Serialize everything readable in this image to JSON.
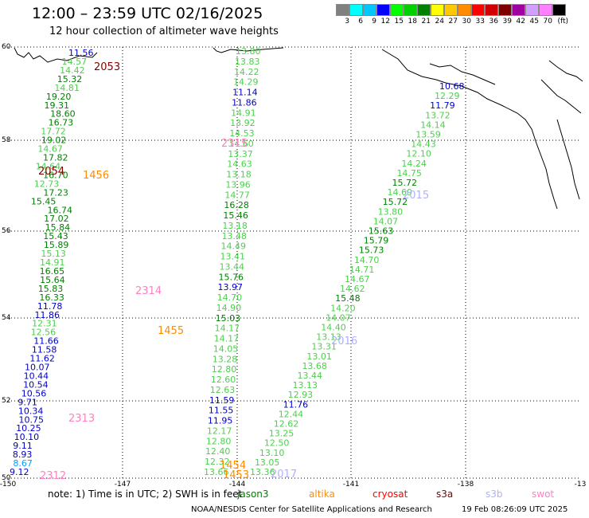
{
  "header": {
    "title": "12:00 – 23:59 UTC 02/16/2025",
    "subtitle": "12 hour collection of altimeter wave heights"
  },
  "legend": {
    "colors": [
      "#808080",
      "#00ffff",
      "#00c8ff",
      "#0000ff",
      "#00ff00",
      "#00d000",
      "#008000",
      "#ffff00",
      "#ffc800",
      "#ff8c00",
      "#ff0000",
      "#d00000",
      "#800000",
      "#a000a0",
      "#d0a0ff",
      "#ff80ff",
      "#000000"
    ],
    "labels": [
      "3",
      "6",
      "9",
      "12",
      "15",
      "18",
      "21",
      "24",
      "27",
      "30",
      "33",
      "36",
      "39",
      "42",
      "45",
      "70",
      "(ft)"
    ]
  },
  "axes": {
    "lat_labels": [
      "60",
      "58",
      "56",
      "54",
      "52",
      "50"
    ],
    "lon_labels": [
      "-150",
      "-147",
      "-144",
      "-141",
      "-138",
      "-13"
    ]
  },
  "tracks": [
    {
      "id": "t1",
      "labels": [
        {
          "v": "11.56",
          "c": "#0000cc"
        },
        {
          "v": "14.57",
          "c": "#4cd04c"
        },
        {
          "v": "14.42",
          "c": "#4cd04c"
        },
        {
          "v": "15.32",
          "c": "#008000"
        },
        {
          "v": "14.81",
          "c": "#4cd04c"
        },
        {
          "v": "19.20",
          "c": "#008000"
        },
        {
          "v": "19.31",
          "c": "#008000"
        },
        {
          "v": "18.60",
          "c": "#008000"
        },
        {
          "v": "16.73",
          "c": "#008000"
        },
        {
          "v": "17.72",
          "c": "#4cd04c"
        },
        {
          "v": "19.02",
          "c": "#008000"
        },
        {
          "v": "14.67",
          "c": "#4cd04c"
        },
        {
          "v": "17.82",
          "c": "#008000"
        },
        {
          "v": "14.64",
          "c": "#4cd04c"
        },
        {
          "v": "16.70",
          "c": "#008000"
        },
        {
          "v": "12.73",
          "c": "#4cd04c"
        },
        {
          "v": "17.23",
          "c": "#008000"
        },
        {
          "v": "15.45",
          "c": "#008000"
        },
        {
          "v": "16.74",
          "c": "#008000"
        },
        {
          "v": "17.02",
          "c": "#008000"
        },
        {
          "v": "15.84",
          "c": "#008000"
        },
        {
          "v": "15.43",
          "c": "#008000"
        },
        {
          "v": "15.89",
          "c": "#008000"
        },
        {
          "v": "15.13",
          "c": "#4cd04c"
        },
        {
          "v": "14.91",
          "c": "#4cd04c"
        },
        {
          "v": "16.65",
          "c": "#008000"
        },
        {
          "v": "15.64",
          "c": "#008000"
        },
        {
          "v": "15.83",
          "c": "#008000"
        },
        {
          "v": "16.33",
          "c": "#008000"
        },
        {
          "v": "11.78",
          "c": "#0000cc"
        },
        {
          "v": "11.86",
          "c": "#0000cc"
        },
        {
          "v": "12.31",
          "c": "#4cd04c"
        },
        {
          "v": "12.56",
          "c": "#4cd04c"
        },
        {
          "v": "11.66",
          "c": "#0000cc"
        },
        {
          "v": "11.58",
          "c": "#0000cc"
        },
        {
          "v": "11.62",
          "c": "#0000cc"
        },
        {
          "v": "10.07",
          "c": "#0000cc"
        },
        {
          "v": "10.44",
          "c": "#0000cc"
        },
        {
          "v": "10.54",
          "c": "#0000cc"
        },
        {
          "v": "10.56",
          "c": "#0000cc"
        },
        {
          "v": "9.71",
          "c": "#0000cc"
        },
        {
          "v": "10.34",
          "c": "#0000cc"
        },
        {
          "v": "10.75",
          "c": "#0000cc"
        },
        {
          "v": "10.25",
          "c": "#0000cc"
        },
        {
          "v": "10.10",
          "c": "#0000cc"
        },
        {
          "v": "9.11",
          "c": "#0000cc"
        },
        {
          "v": "8.93",
          "c": "#0000cc"
        },
        {
          "v": "8.67",
          "c": "#00a0ff"
        },
        {
          "v": "9.12",
          "c": "#0000cc"
        }
      ]
    },
    {
      "id": "t2",
      "labels": [
        {
          "v": "13.80",
          "c": "#4cd04c"
        },
        {
          "v": "13.83",
          "c": "#4cd04c"
        },
        {
          "v": "14.22",
          "c": "#4cd04c"
        },
        {
          "v": "14.29",
          "c": "#4cd04c"
        },
        {
          "v": "11.14",
          "c": "#0000cc"
        },
        {
          "v": "11.86",
          "c": "#0000cc"
        },
        {
          "v": "14.91",
          "c": "#4cd04c"
        },
        {
          "v": "13.92",
          "c": "#4cd04c"
        },
        {
          "v": "14.53",
          "c": "#4cd04c"
        },
        {
          "v": "14.60",
          "c": "#4cd04c"
        },
        {
          "v": "13.37",
          "c": "#4cd04c"
        },
        {
          "v": "14.63",
          "c": "#4cd04c"
        },
        {
          "v": "13.18",
          "c": "#4cd04c"
        },
        {
          "v": "13.96",
          "c": "#4cd04c"
        },
        {
          "v": "14.77",
          "c": "#4cd04c"
        },
        {
          "v": "16.28",
          "c": "#008000"
        },
        {
          "v": "15.46",
          "c": "#008000"
        },
        {
          "v": "13.18",
          "c": "#4cd04c"
        },
        {
          "v": "13.48",
          "c": "#4cd04c"
        },
        {
          "v": "14.49",
          "c": "#4cd04c"
        },
        {
          "v": "13.41",
          "c": "#4cd04c"
        },
        {
          "v": "13.44",
          "c": "#4cd04c"
        },
        {
          "v": "15.76",
          "c": "#008000"
        },
        {
          "v": "13.97",
          "c": "#0000cc"
        },
        {
          "v": "14.70",
          "c": "#4cd04c"
        },
        {
          "v": "14.90",
          "c": "#4cd04c"
        },
        {
          "v": "15.03",
          "c": "#008000"
        },
        {
          "v": "14.17",
          "c": "#4cd04c"
        },
        {
          "v": "14.17",
          "c": "#4cd04c"
        },
        {
          "v": "14.05",
          "c": "#4cd04c"
        },
        {
          "v": "13.28",
          "c": "#4cd04c"
        },
        {
          "v": "12.80",
          "c": "#4cd04c"
        },
        {
          "v": "12.60",
          "c": "#4cd04c"
        },
        {
          "v": "12.63",
          "c": "#4cd04c"
        },
        {
          "v": "11.59",
          "c": "#0000cc"
        },
        {
          "v": "11.55",
          "c": "#0000cc"
        },
        {
          "v": "11.95",
          "c": "#0000cc"
        },
        {
          "v": "12.17",
          "c": "#4cd04c"
        },
        {
          "v": "12.80",
          "c": "#4cd04c"
        },
        {
          "v": "12.40",
          "c": "#4cd04c"
        },
        {
          "v": "12.32",
          "c": "#4cd04c"
        },
        {
          "v": "13.66",
          "c": "#4cd04c"
        }
      ]
    },
    {
      "id": "t3",
      "labels": [
        {
          "v": "10.68",
          "c": "#0000cc"
        },
        {
          "v": "12.29",
          "c": "#4cd04c"
        },
        {
          "v": "11.79",
          "c": "#0000cc"
        },
        {
          "v": "13.72",
          "c": "#4cd04c"
        },
        {
          "v": "14.14",
          "c": "#4cd04c"
        },
        {
          "v": "13.59",
          "c": "#4cd04c"
        },
        {
          "v": "14.43",
          "c": "#4cd04c"
        },
        {
          "v": "12.10",
          "c": "#4cd04c"
        },
        {
          "v": "14.24",
          "c": "#4cd04c"
        },
        {
          "v": "14.75",
          "c": "#4cd04c"
        },
        {
          "v": "15.72",
          "c": "#008000"
        },
        {
          "v": "14.69",
          "c": "#4cd04c"
        },
        {
          "v": "15.72",
          "c": "#008000"
        },
        {
          "v": "13.80",
          "c": "#4cd04c"
        },
        {
          "v": "14.07",
          "c": "#4cd04c"
        },
        {
          "v": "15.63",
          "c": "#008000"
        },
        {
          "v": "15.79",
          "c": "#008000"
        },
        {
          "v": "15.73",
          "c": "#008000"
        },
        {
          "v": "14.70",
          "c": "#4cd04c"
        },
        {
          "v": "14.71",
          "c": "#4cd04c"
        },
        {
          "v": "14.67",
          "c": "#4cd04c"
        },
        {
          "v": "14.62",
          "c": "#4cd04c"
        },
        {
          "v": "15.48",
          "c": "#008000"
        },
        {
          "v": "14.20",
          "c": "#4cd04c"
        },
        {
          "v": "14.07",
          "c": "#4cd04c"
        },
        {
          "v": "14.40",
          "c": "#4cd04c"
        },
        {
          "v": "13.13",
          "c": "#4cd04c"
        },
        {
          "v": "13.31",
          "c": "#4cd04c"
        },
        {
          "v": "13.01",
          "c": "#4cd04c"
        },
        {
          "v": "13.68",
          "c": "#4cd04c"
        },
        {
          "v": "13.44",
          "c": "#4cd04c"
        },
        {
          "v": "13.13",
          "c": "#4cd04c"
        },
        {
          "v": "12.93",
          "c": "#4cd04c"
        },
        {
          "v": "11.76",
          "c": "#0000cc"
        },
        {
          "v": "12.44",
          "c": "#4cd04c"
        },
        {
          "v": "12.62",
          "c": "#4cd04c"
        },
        {
          "v": "13.25",
          "c": "#4cd04c"
        },
        {
          "v": "12.50",
          "c": "#4cd04c"
        },
        {
          "v": "13.10",
          "c": "#4cd04c"
        },
        {
          "v": "13.05",
          "c": "#4cd04c"
        },
        {
          "v": "13.36",
          "c": "#4cd04c"
        }
      ]
    }
  ],
  "time_labels": [
    {
      "v": "2053",
      "c": "#800000"
    },
    {
      "v": "2054",
      "c": "#800000"
    },
    {
      "v": "1456",
      "c": "#ff8c00"
    },
    {
      "v": "2315",
      "c": "#ff80c0"
    },
    {
      "v": "2314",
      "c": "#ff80c0"
    },
    {
      "v": "1455",
      "c": "#ff8c00"
    },
    {
      "v": "2313",
      "c": "#ff80c0"
    },
    {
      "v": "2312",
      "c": "#ff80c0"
    },
    {
      "v": "1454",
      "c": "#ff8c00"
    },
    {
      "v": "1453",
      "c": "#ff8c00"
    },
    {
      "v": "2015",
      "c": "#b0b0ff"
    },
    {
      "v": "2016",
      "c": "#b0b0ff"
    },
    {
      "v": "2017",
      "c": "#b0b0ff"
    }
  ],
  "footer": {
    "note": "note: 1) Time is in UTC; 2) SWH is in feet",
    "satellites": [
      {
        "name": "jason3",
        "color": "#008000"
      },
      {
        "name": "altika",
        "color": "#ff8c00"
      },
      {
        "name": "cryosat",
        "color": "#ff0000"
      },
      {
        "name": "s3a",
        "color": "#800000"
      },
      {
        "name": "s3b",
        "color": "#b0b0ff"
      },
      {
        "name": "swot",
        "color": "#ff80c0"
      }
    ],
    "credit": "NOAA/NESDIS Center for Satellite Applications and Research",
    "timestamp": "19 Feb 08:26:09 UTC 2025"
  }
}
